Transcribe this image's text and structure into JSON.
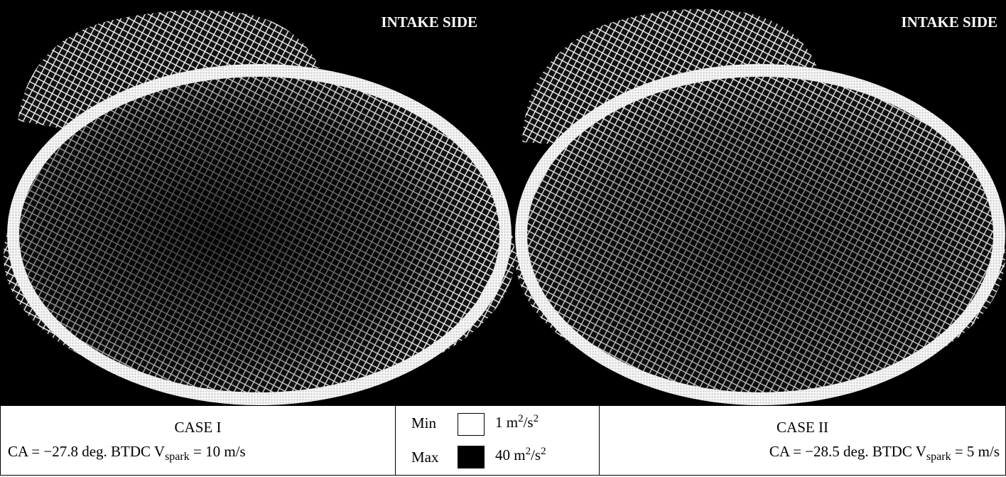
{
  "panels": [
    {
      "label": "INTAKE SIDE"
    },
    {
      "label": "INTAKE SIDE"
    }
  ],
  "cases": [
    {
      "title": "CASE I",
      "condition": {
        "prefix": "CA = −27.8 deg. BTDC V",
        "subscript": "spark",
        "suffix": " = 10 m/s"
      }
    },
    {
      "title": "CASE II",
      "condition": {
        "prefix": "CA = −28.5 deg. BTDC V",
        "subscript": "spark",
        "suffix": " = 5 m/s"
      }
    }
  ],
  "legend": {
    "min": {
      "label": "Min",
      "value": "1 m",
      "superscript": "2",
      "unit": "/s",
      "unit_superscript": "2"
    },
    "max": {
      "label": "Max",
      "value": "40 m",
      "superscript": "2",
      "unit": "/s",
      "unit_superscript": "2"
    }
  }
}
